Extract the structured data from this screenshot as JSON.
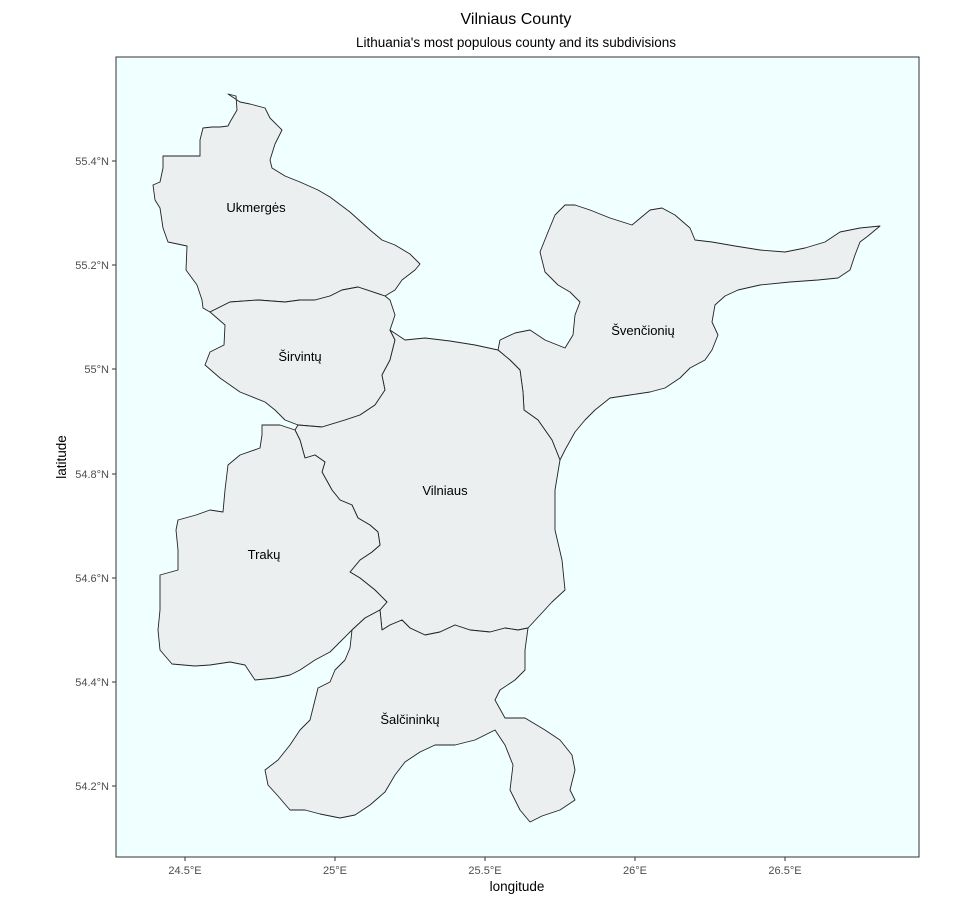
{
  "map": {
    "title": "Vilniaus County",
    "subtitle": "Lithuania's most populous county and its subdivisions",
    "x_axis_title": "longitude",
    "y_axis_title": "latitude",
    "panel_background": "#f0ffff",
    "region_fill": "#ebefef",
    "x_ticks": [
      "24.5°E",
      "25°E",
      "25.5°E",
      "26°E",
      "26.5°E"
    ],
    "y_ticks": [
      "55.4°N",
      "55.2°N",
      "55°N",
      "54.8°N",
      "54.6°N",
      "54.4°N",
      "54.2°N"
    ],
    "regions": [
      {
        "name": "Ukmergės"
      },
      {
        "name": "Širvintų"
      },
      {
        "name": "Švenčionių"
      },
      {
        "name": "Vilniaus"
      },
      {
        "name": "Trakų"
      },
      {
        "name": "Šalčininkų"
      }
    ]
  }
}
